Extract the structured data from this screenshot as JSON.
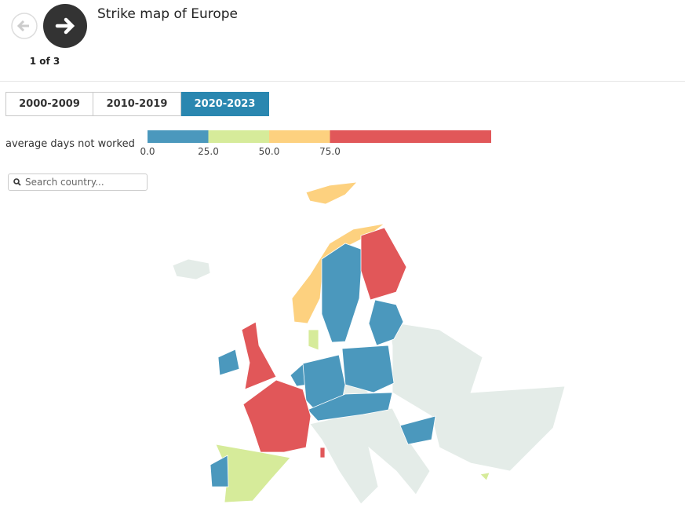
{
  "header": {
    "title": "Strike map of Europe",
    "pager": "1 of 3"
  },
  "tabs": [
    "2000-2009",
    "2010-2019",
    "2020-2023"
  ],
  "active_tab": 2,
  "legend": {
    "label": "average days not worked",
    "colors": [
      "#4b98bd",
      "#d6eb9a",
      "#fdd17f",
      "#e15759"
    ],
    "ticks": [
      {
        "value": 0,
        "label": "0.0"
      },
      {
        "value": 25,
        "label": "25.0"
      },
      {
        "value": 50,
        "label": "50.0"
      },
      {
        "value": 75,
        "label": "75.0"
      }
    ],
    "no_data_color": "#e4ece8"
  },
  "search": {
    "placeholder": "Search country..."
  }
}
